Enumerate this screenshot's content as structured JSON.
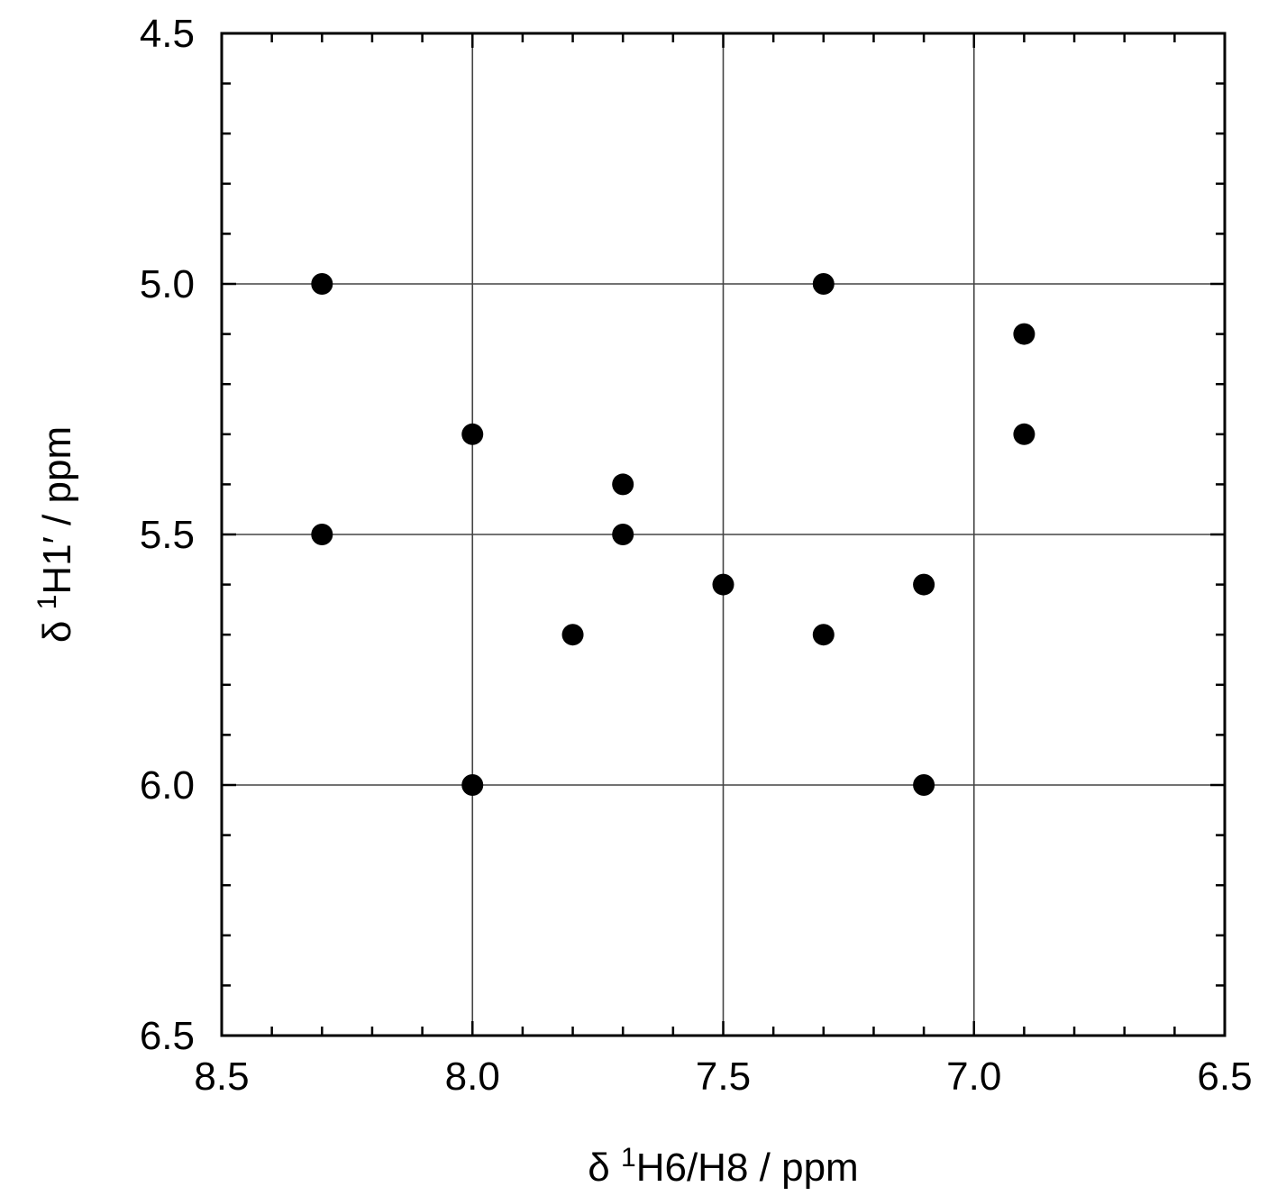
{
  "chart_data": {
    "type": "scatter",
    "title": "",
    "xlabel": {
      "prefix": "δ ",
      "superscript": "1",
      "text": "H6/H8 / ppm"
    },
    "ylabel": {
      "prefix": "δ ",
      "superscript": "1",
      "text": "H1′ / ppm"
    },
    "xlim": [
      8.5,
      6.5
    ],
    "ylim": [
      4.5,
      6.5
    ],
    "x_reversed": true,
    "y_reversed": true,
    "xticks": [
      "8.5",
      "8.0",
      "7.5",
      "7.0",
      "6.5"
    ],
    "yticks": [
      "4.5",
      "5.0",
      "5.5",
      "6.0",
      "6.5"
    ],
    "x_minor_step": 0.1,
    "y_minor_step": 0.1,
    "grid": true,
    "grid_x": [
      8.0,
      7.5,
      7.0
    ],
    "grid_y": [
      5.0,
      5.5,
      6.0
    ],
    "marker_color": "#000000",
    "series": [
      {
        "points": [
          {
            "x": 8.3,
            "y": 5.0
          },
          {
            "x": 7.3,
            "y": 5.0
          },
          {
            "x": 6.9,
            "y": 5.1
          },
          {
            "x": 8.0,
            "y": 5.3
          },
          {
            "x": 6.9,
            "y": 5.3
          },
          {
            "x": 7.7,
            "y": 5.4
          },
          {
            "x": 8.3,
            "y": 5.5
          },
          {
            "x": 7.7,
            "y": 5.5
          },
          {
            "x": 7.5,
            "y": 5.6
          },
          {
            "x": 7.1,
            "y": 5.6
          },
          {
            "x": 7.8,
            "y": 5.7
          },
          {
            "x": 7.3,
            "y": 5.7
          },
          {
            "x": 8.0,
            "y": 6.0
          },
          {
            "x": 7.1,
            "y": 6.0
          }
        ]
      }
    ]
  }
}
